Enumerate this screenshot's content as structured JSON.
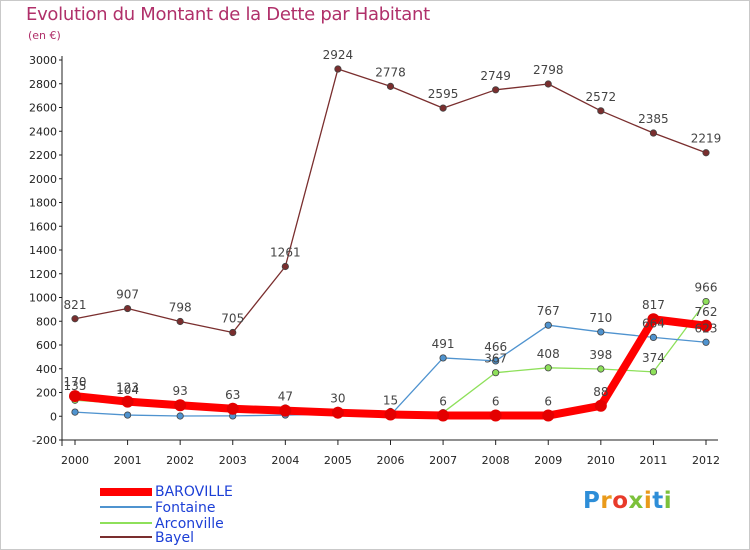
{
  "chart_data": {
    "type": "line",
    "title": "Evolution du Montant de la Dette par Habitant",
    "subtitle": "(en €)",
    "x": [
      "2000",
      "2001",
      "2002",
      "2003",
      "2004",
      "2005",
      "2006",
      "2007",
      "2008",
      "2009",
      "2010",
      "2011",
      "2012"
    ],
    "ylim": [
      -200,
      3000
    ],
    "yticks": [
      -200,
      0,
      200,
      400,
      600,
      800,
      1000,
      1200,
      1400,
      1600,
      1800,
      2000,
      2200,
      2400,
      2600,
      2800,
      3000
    ],
    "grid": false,
    "legend_position": "bottom-left",
    "series": [
      {
        "name": "BAROVILLE",
        "color": "#ff0000",
        "values": [
          170,
          123,
          93,
          63,
          47,
          30,
          15,
          6,
          6,
          6,
          88,
          817,
          762
        ],
        "labels": [
          "170",
          "123",
          "93",
          "63",
          "47",
          "30",
          "15",
          "6",
          "6",
          "6",
          "88",
          "817",
          "762"
        ]
      },
      {
        "name": "Fontaine",
        "color": "#4f93cf",
        "values": [
          35,
          10,
          2,
          3,
          10,
          20,
          10,
          491,
          466,
          767,
          710,
          664,
          623
        ],
        "labels": [
          "",
          "",
          "",
          "",
          "",
          "",
          "",
          "491",
          "466",
          "767",
          "710",
          "664",
          "623"
        ]
      },
      {
        "name": "Arconville",
        "color": "#8ee05a",
        "values": [
          135,
          104,
          85,
          82,
          70,
          50,
          40,
          31,
          367,
          408,
          398,
          374,
          966
        ],
        "labels": [
          "135",
          "104",
          "",
          "",
          "",
          "",
          "",
          "",
          "367",
          "408",
          "398",
          "374",
          "966"
        ]
      },
      {
        "name": "Bayel",
        "color": "#7a2e2e",
        "values": [
          821,
          907,
          798,
          705,
          1261,
          2924,
          2778,
          2595,
          2749,
          2798,
          2572,
          2385,
          2219
        ],
        "labels": [
          "821",
          "907",
          "798",
          "705",
          "1261",
          "2924",
          "2778",
          "2595",
          "2749",
          "2798",
          "2572",
          "2385",
          "2219"
        ]
      }
    ]
  },
  "logo": {
    "letters": [
      "P",
      "r",
      "o",
      "x",
      "i",
      "t",
      "i"
    ],
    "colors": [
      "#2e8ed8",
      "#e99a1a",
      "#e83a2a",
      "#7cc13b",
      "#e99a1a",
      "#2e8ed8",
      "#7cc13b"
    ]
  }
}
